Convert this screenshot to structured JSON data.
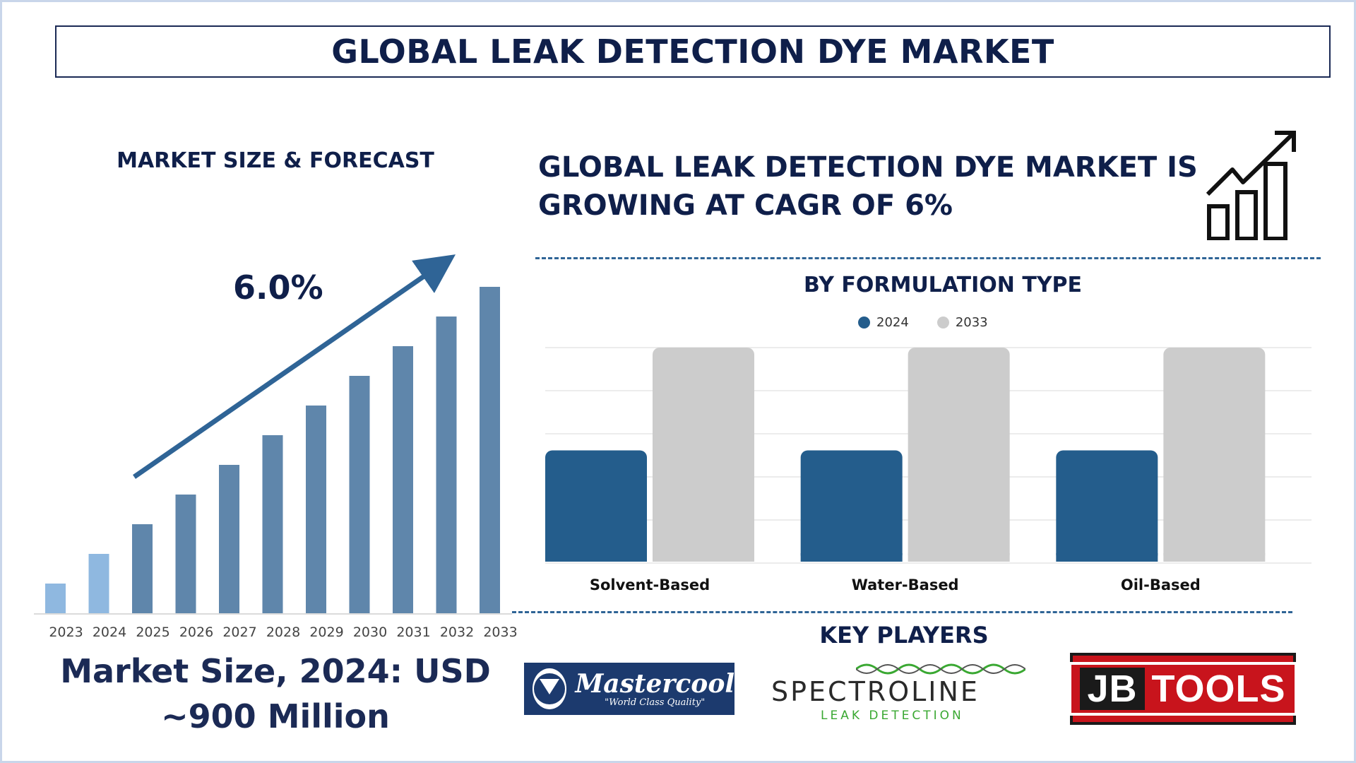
{
  "title": "GLOBAL LEAK DETECTION DYE MARKET",
  "left_panel": {
    "subtitle": "MARKET SIZE & FORECAST",
    "cagr_label": "6.0%",
    "market_size_line1": "Market Size, 2024: USD",
    "market_size_line2": "~900 Million"
  },
  "right_panel": {
    "headline_line1": "GLOBAL LEAK DETECTION DYE MARKET IS",
    "headline_line2": "GROWING AT CAGR OF 6%",
    "formulation_title": "BY FORMULATION TYPE",
    "key_players_title": "KEY PLAYERS"
  },
  "icons": {
    "trend": "growth-chart-icon"
  },
  "logos": {
    "mastercool_name": "Mastercool",
    "mastercool_tag": "\"World Class Quality\"",
    "spectroline_name": "SPECTROLINE",
    "spectroline_sub": "LEAK DETECTION",
    "jb_part1": "JB",
    "jb_part2": "TOOLS"
  },
  "colors": {
    "navy": "#0f1f4a",
    "light_bar": "#8fb8e0",
    "forecast_bar": "#5f86ab",
    "arrow": "#2f6496",
    "series_2024": "#245d8c",
    "series_2033": "#cccccc"
  },
  "chart_data": [
    {
      "type": "bar",
      "categories": [
        "2023",
        "2024",
        "2025",
        "2026",
        "2027",
        "2028",
        "2029",
        "2030",
        "2031",
        "2032",
        "2033"
      ],
      "values": [
        10,
        20,
        30,
        40,
        50,
        60,
        70,
        80,
        90,
        100,
        110
      ],
      "highlighted_categories": [
        "2023",
        "2024"
      ],
      "title": "",
      "xlabel": "",
      "ylabel": "",
      "ylim": [
        0,
        110
      ],
      "annotation": "6.0%",
      "grid": false
    },
    {
      "type": "bar",
      "title": "BY FORMULATION TYPE",
      "categories": [
        "Solvent-Based",
        "Water-Based",
        "Oil-Based"
      ],
      "series": [
        {
          "name": "2024",
          "values": [
            52,
            52,
            52
          ]
        },
        {
          "name": "2033",
          "values": [
            100,
            100,
            100
          ]
        }
      ],
      "ylim": [
        0,
        100
      ],
      "legend": "top-center",
      "grid": true
    }
  ]
}
